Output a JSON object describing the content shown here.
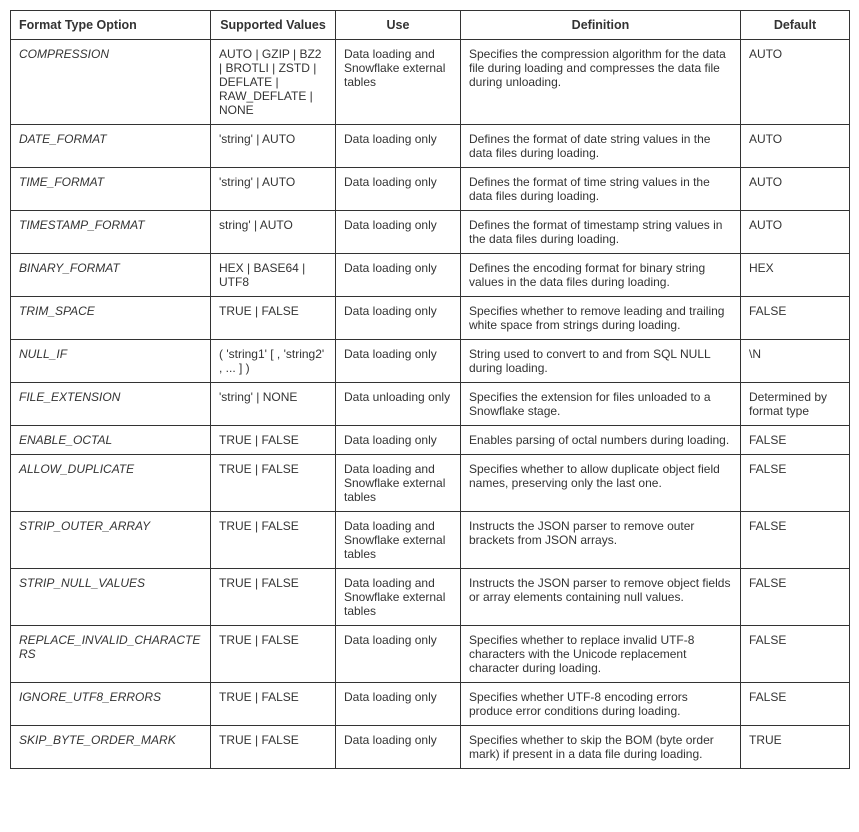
{
  "columns": [
    "Format Type Option",
    "Supported Values",
    "Use",
    "Definition",
    "Default"
  ],
  "col_align": [
    "left",
    "center",
    "center",
    "center",
    "center"
  ],
  "rows": [
    {
      "option": "COMPRESSION",
      "values": "AUTO | GZIP | BZ2 | BROTLI | ZSTD | DEFLATE | RAW_DEFLATE | NONE",
      "use": "Data loading and Snowflake external tables",
      "definition": "Specifies the compression algorithm for the data file during loading and compresses the data file during unloading.",
      "default": "AUTO"
    },
    {
      "option": "DATE_FORMAT",
      "values": "'string' | AUTO",
      "use": "Data loading only",
      "definition": "Defines the format of date string values in the data files during loading.",
      "default": "AUTO"
    },
    {
      "option": "TIME_FORMAT",
      "values": "'string' | AUTO",
      "use": "Data loading only",
      "definition": "Defines the format of time string values in the data files during loading.",
      "default": "AUTO"
    },
    {
      "option": "TIMESTAMP_FORMAT",
      "values": "string' | AUTO",
      "use": "Data loading only",
      "definition": "Defines the format of timestamp string values in the data files during loading.",
      "default": "AUTO"
    },
    {
      "option": "BINARY_FORMAT",
      "values": "HEX | BASE64 | UTF8",
      "use": "Data loading only",
      "definition": "Defines the encoding format for binary string values in the data files during loading.",
      "default": "HEX"
    },
    {
      "option": "TRIM_SPACE",
      "values": "TRUE | FALSE",
      "use": "Data loading only",
      "definition": "Specifies whether to remove leading and trailing white space from strings during loading.",
      "default": "FALSE"
    },
    {
      "option": "NULL_IF",
      "values": "( 'string1' [ , 'string2' , ... ] )",
      "use": "Data loading only",
      "definition": "String used to convert to and from SQL NULL during loading.",
      "default": "\\N"
    },
    {
      "option": "FILE_EXTENSION",
      "values": "'string' | NONE",
      "use": "Data unloading only",
      "definition": "Specifies the extension for files unloaded to a Snowflake stage.",
      "default": "Determined by format type"
    },
    {
      "option": "ENABLE_OCTAL",
      "values": "TRUE | FALSE",
      "use": "Data loading only",
      "definition": "Enables parsing of octal numbers during loading.",
      "default": "FALSE"
    },
    {
      "option": "ALLOW_DUPLICATE",
      "values": "TRUE | FALSE",
      "use": "Data loading and Snowflake external tables",
      "definition": "Specifies whether to allow duplicate object field names, preserving only the last one.",
      "default": "FALSE"
    },
    {
      "option": "STRIP_OUTER_ARRAY",
      "values": "TRUE | FALSE",
      "use": "Data loading and Snowflake external tables",
      "definition": "Instructs the JSON parser to remove outer brackets from JSON arrays.",
      "default": "FALSE"
    },
    {
      "option": "STRIP_NULL_VALUES",
      "values": "TRUE | FALSE",
      "use": "Data loading and Snowflake external tables",
      "definition": "Instructs the JSON parser to remove object fields or array elements containing null values.",
      "default": "FALSE"
    },
    {
      "option": "REPLACE_INVALID_CHARACTERS",
      "values": "TRUE | FALSE",
      "use": "Data loading only",
      "definition": "Specifies whether to replace invalid UTF-8 characters with the Unicode replacement character during loading.",
      "default": "FALSE"
    },
    {
      "option": "IGNORE_UTF8_ERRORS",
      "values": "TRUE | FALSE",
      "use": "Data loading only",
      "definition": "Specifies whether UTF-8 encoding errors produce error conditions during loading.",
      "default": "FALSE"
    },
    {
      "option": "SKIP_BYTE_ORDER_MARK",
      "values": "TRUE | FALSE",
      "use": "Data loading only",
      "definition": "Specifies whether to skip the BOM (byte order mark) if present in a data file during loading.",
      "default": "TRUE"
    }
  ]
}
